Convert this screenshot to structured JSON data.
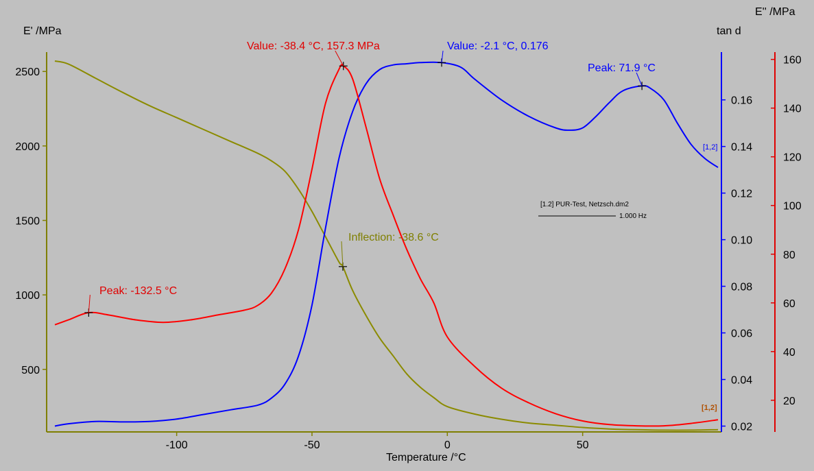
{
  "chart_data": {
    "type": "line",
    "xlabel": "Temperature /°C",
    "x_ticks": [
      -100,
      -50,
      0,
      50
    ],
    "xlim": [
      -145,
      100
    ],
    "axes": {
      "left": {
        "label": "E' /MPa",
        "color": "#7f7f00",
        "ylim": [
          80,
          2630
        ],
        "ticks": [
          500,
          1000,
          1500,
          2000,
          2500
        ]
      },
      "right1": {
        "label": "tan d",
        "color": "#0000ff",
        "ylim": [
          0.0175,
          0.1805
        ],
        "ticks": [
          0.02,
          0.04,
          0.06,
          0.08,
          0.1,
          0.12,
          0.14,
          0.16
        ]
      },
      "right2": {
        "label": "E'' /MPa",
        "color": "#e00000",
        "ylim": [
          7,
          163
        ],
        "ticks": [
          20,
          40,
          60,
          80,
          100,
          120,
          140,
          160
        ]
      }
    },
    "series": [
      {
        "axis": "left",
        "color": "#8b8b00",
        "x": [
          -145,
          -140,
          -130,
          -120,
          -110,
          -100,
          -90,
          -80,
          -70,
          -65,
          -60,
          -55,
          -50,
          -45,
          -40,
          -38.6,
          -35,
          -30,
          -25,
          -20,
          -15,
          -10,
          -5,
          0,
          10,
          20,
          30,
          40,
          50,
          60,
          70,
          80,
          90,
          100
        ],
        "y": [
          2570,
          2550,
          2455,
          2360,
          2270,
          2190,
          2110,
          2030,
          1950,
          1900,
          1830,
          1710,
          1560,
          1390,
          1220,
          1190,
          1030,
          860,
          710,
          590,
          470,
          380,
          310,
          250,
          200,
          165,
          140,
          125,
          110,
          100,
          95,
          92,
          92,
          95
        ]
      },
      {
        "axis": "right1",
        "color": "#0000ff",
        "x": [
          -145,
          -140,
          -130,
          -120,
          -110,
          -100,
          -90,
          -80,
          -70,
          -65,
          -60,
          -55,
          -50,
          -45,
          -40,
          -35,
          -30,
          -25,
          -20,
          -15,
          -10,
          -2.1,
          5,
          10,
          20,
          30,
          40,
          45,
          50,
          55,
          60,
          65,
          71.9,
          75,
          80,
          85,
          90,
          95,
          100
        ],
        "y": [
          0.02,
          0.021,
          0.022,
          0.0218,
          0.022,
          0.023,
          0.025,
          0.027,
          0.029,
          0.032,
          0.038,
          0.05,
          0.072,
          0.105,
          0.135,
          0.155,
          0.167,
          0.173,
          0.175,
          0.1755,
          0.176,
          0.176,
          0.174,
          0.169,
          0.16,
          0.153,
          0.148,
          0.147,
          0.148,
          0.153,
          0.159,
          0.164,
          0.166,
          0.165,
          0.16,
          0.15,
          0.141,
          0.135,
          0.131
        ]
      },
      {
        "axis": "right2",
        "color": "#ff0000",
        "x": [
          -145,
          -140,
          -132.5,
          -125,
          -115,
          -105,
          -95,
          -85,
          -75,
          -70,
          -65,
          -60,
          -55,
          -50,
          -45,
          -40,
          -38.4,
          -35,
          -30,
          -25,
          -20,
          -15,
          -10,
          -5,
          0,
          10,
          20,
          30,
          40,
          50,
          60,
          70,
          80,
          90,
          100
        ],
        "y": [
          51,
          53,
          56,
          55,
          53,
          52,
          53,
          55,
          57,
          59,
          64,
          74,
          90,
          115,
          142,
          156,
          157.3,
          152,
          132,
          111,
          96,
          82,
          70,
          60,
          46,
          34,
          25,
          19,
          14.5,
          11.5,
          10,
          9.5,
          9.5,
          10.5,
          12
        ]
      }
    ],
    "annotations": {
      "peak_left": "Peak: -132.5 °C",
      "value_red": "Value: -38.4 °C, 157.3 MPa",
      "value_blue": "Value: -2.1 °C, 0.176",
      "peak_blue": "Peak: 71.9 °C",
      "inflection": "Inflection: -38.6 °C",
      "tag_blue": "[1,2]",
      "tag_red": "[1,2]"
    },
    "legend": {
      "file": "[1.2] PUR-Test, Netzsch.dm2",
      "freq": "1.000 Hz"
    }
  }
}
